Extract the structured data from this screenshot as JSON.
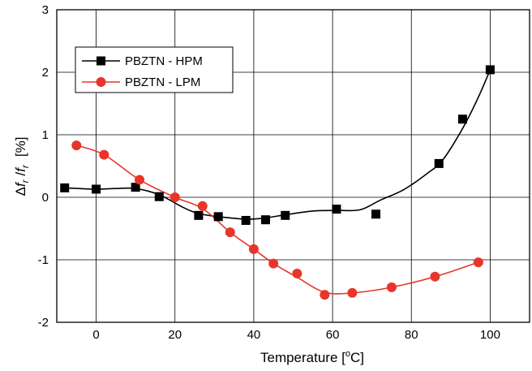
{
  "chart_data": {
    "type": "line",
    "xlabel": {
      "main": "Temperature [",
      "sup": "o",
      "unit": "C]"
    },
    "ylabel": {
      "delta": "Δ",
      "f1": "f",
      "sub1": "r",
      "slash": " /",
      "f2": "f",
      "sub2": "r",
      "unit": "[%]"
    },
    "xlim": [
      -10,
      110
    ],
    "ylim": [
      -2,
      3
    ],
    "xticks": [
      0,
      20,
      40,
      60,
      80,
      100
    ],
    "yticks": [
      -2,
      -1,
      0,
      1,
      2,
      3
    ],
    "grid": true,
    "legend_position": "top-left",
    "series": [
      {
        "name": "PBZTN - HPM",
        "color": "#000000",
        "marker": "square",
        "points": [
          [
            -8,
            0.15
          ],
          [
            0,
            0.13
          ],
          [
            10,
            0.16
          ],
          [
            16,
            0.01
          ],
          [
            26,
            -0.29
          ],
          [
            31,
            -0.31
          ],
          [
            38,
            -0.37
          ],
          [
            43,
            -0.36
          ],
          [
            48,
            -0.29
          ],
          [
            61,
            -0.19
          ],
          [
            71,
            -0.27
          ],
          [
            87,
            0.54
          ],
          [
            93,
            1.25
          ],
          [
            100,
            2.04
          ]
        ],
        "curve": [
          [
            -8,
            0.15
          ],
          [
            0,
            0.13
          ],
          [
            5,
            0.14
          ],
          [
            10,
            0.14
          ],
          [
            16,
            0.04
          ],
          [
            22,
            -0.16
          ],
          [
            26,
            -0.26
          ],
          [
            31,
            -0.31
          ],
          [
            38,
            -0.35
          ],
          [
            43,
            -0.33
          ],
          [
            48,
            -0.28
          ],
          [
            55,
            -0.22
          ],
          [
            61,
            -0.21
          ],
          [
            67,
            -0.2
          ],
          [
            72,
            -0.05
          ],
          [
            78,
            0.12
          ],
          [
            84,
            0.38
          ],
          [
            88,
            0.6
          ],
          [
            93,
            1.1
          ],
          [
            97,
            1.6
          ],
          [
            100,
            2.04
          ]
        ]
      },
      {
        "name": "PBZTN - LPM",
        "color": "#e8352b",
        "marker": "circle",
        "points": [
          [
            -5,
            0.83
          ],
          [
            2,
            0.68
          ],
          [
            11,
            0.28
          ],
          [
            20,
            0.0
          ],
          [
            27,
            -0.14
          ],
          [
            34,
            -0.56
          ],
          [
            40,
            -0.83
          ],
          [
            45,
            -1.06
          ],
          [
            51,
            -1.22
          ],
          [
            58,
            -1.56
          ],
          [
            65,
            -1.53
          ],
          [
            75,
            -1.44
          ],
          [
            86,
            -1.27
          ],
          [
            97,
            -1.04
          ]
        ],
        "curve": [
          [
            -5,
            0.83
          ],
          [
            2,
            0.68
          ],
          [
            11,
            0.28
          ],
          [
            20,
            0.0
          ],
          [
            27,
            -0.18
          ],
          [
            34,
            -0.56
          ],
          [
            40,
            -0.83
          ],
          [
            45,
            -1.06
          ],
          [
            51,
            -1.28
          ],
          [
            58,
            -1.52
          ],
          [
            65,
            -1.53
          ],
          [
            75,
            -1.44
          ],
          [
            86,
            -1.27
          ],
          [
            97,
            -1.04
          ]
        ]
      }
    ]
  }
}
